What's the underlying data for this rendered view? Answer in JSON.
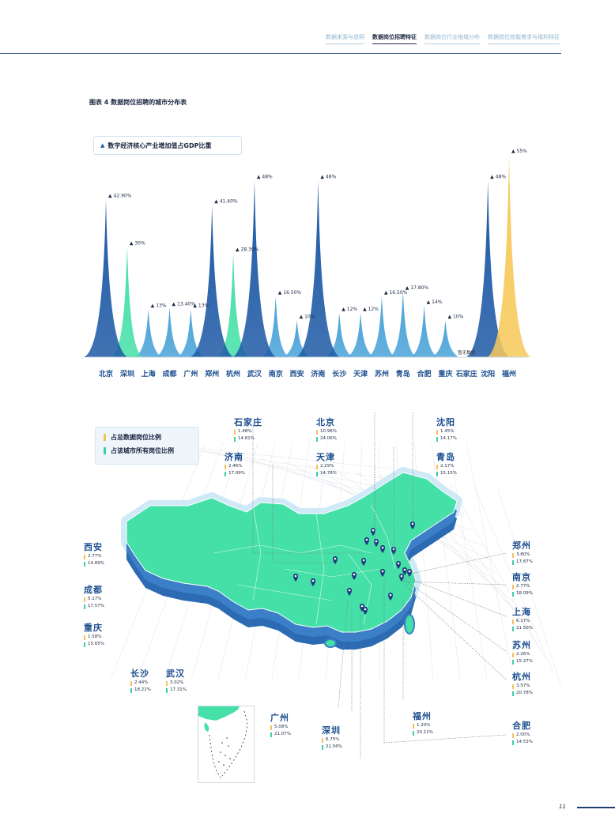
{
  "nav": {
    "items": [
      "数据来源与说明",
      "数据岗位招聘特征",
      "数据岗位行业地域分布",
      "数据岗位技能需求与福利特征"
    ],
    "active_index": 1
  },
  "figure_title": "图表 4 数据岗位招聘的城市分布表",
  "chart_legend": "数字经济核心产业增加值占GDP比重",
  "chart_data": {
    "type": "area",
    "categories": [
      "北京",
      "深圳",
      "上海",
      "成都",
      "广州",
      "郑州",
      "杭州",
      "武汉",
      "南京",
      "西安",
      "济南",
      "长沙",
      "天津",
      "苏州",
      "青岛",
      "合肥",
      "重庆",
      "石家庄",
      "沈阳",
      "福州"
    ],
    "values": [
      42.9,
      30,
      13,
      13.4,
      13,
      41.4,
      28.3,
      48,
      16.5,
      10,
      48,
      12,
      12,
      16.5,
      17.8,
      14,
      10,
      null,
      48,
      55
    ],
    "value_labels": [
      "42.90%",
      "30%",
      "13%",
      "13.40%",
      "13%",
      "41.40%",
      "28.30%",
      "48%",
      "16.50%",
      "10%",
      "48%",
      "12%",
      "12%",
      "16.50%",
      "17.80%",
      "14%",
      "10%",
      "暂无数据",
      "48%",
      "55%"
    ],
    "series": [
      {
        "name": "数字经济核心产业增加值占GDP比重"
      }
    ],
    "ylim": [
      0,
      58
    ],
    "colors": {
      "dark": "#1f5aa6",
      "mid": "#4aa3d8",
      "green": "#45e0a8",
      "yellow": "#f7c95b"
    },
    "color_keys": [
      "dark",
      "green",
      "mid",
      "mid",
      "mid",
      "dark",
      "green",
      "dark",
      "mid",
      "mid",
      "dark",
      "mid",
      "mid",
      "mid",
      "mid",
      "mid",
      "mid",
      "mid",
      "dark",
      "yellow"
    ]
  },
  "map_legend": {
    "orange_label": "占总数据岗位比例",
    "green_label": "占该城市所有岗位比例"
  },
  "cities": [
    {
      "name": "石家庄",
      "share_total": "1.48%",
      "share_city": "14.81%"
    },
    {
      "name": "北京",
      "share_total": "10.96%",
      "share_city": "24.06%"
    },
    {
      "name": "沈阳",
      "share_total": "1.45%",
      "share_city": "14.17%"
    },
    {
      "name": "济南",
      "share_total": "2.46%",
      "share_city": "17.09%"
    },
    {
      "name": "天津",
      "share_total": "2.29%",
      "share_city": "14.78%"
    },
    {
      "name": "青岛",
      "share_total": "2.17%",
      "share_city": "15.15%"
    },
    {
      "name": "西安",
      "share_total": "2.77%",
      "share_city": "14.89%"
    },
    {
      "name": "成都",
      "share_total": "5.17%",
      "share_city": "17.57%"
    },
    {
      "name": "重庆",
      "share_total": "1.58%",
      "share_city": "15.65%"
    },
    {
      "name": "郑州",
      "share_total": "3.80%",
      "share_city": "17.87%"
    },
    {
      "name": "南京",
      "share_total": "2.77%",
      "share_city": "18.09%"
    },
    {
      "name": "上海",
      "share_total": "6.17%",
      "share_city": "21.50%"
    },
    {
      "name": "苏州",
      "share_total": "2.26%",
      "share_city": "15.27%"
    },
    {
      "name": "杭州",
      "share_total": "3.57%",
      "share_city": "20.78%"
    },
    {
      "name": "长沙",
      "share_total": "2.44%",
      "share_city": "18.21%"
    },
    {
      "name": "武汉",
      "share_total": "3.02%",
      "share_city": "17.31%"
    },
    {
      "name": "广州",
      "share_total": "5.08%",
      "share_city": "21.07%"
    },
    {
      "name": "深圳",
      "share_total": "6.75%",
      "share_city": "21.56%"
    },
    {
      "name": "福州",
      "share_total": "1.20%",
      "share_city": "20.11%"
    },
    {
      "name": "合肥",
      "share_total": "2.00%",
      "share_city": "14.53%"
    }
  ],
  "page_number": "11"
}
